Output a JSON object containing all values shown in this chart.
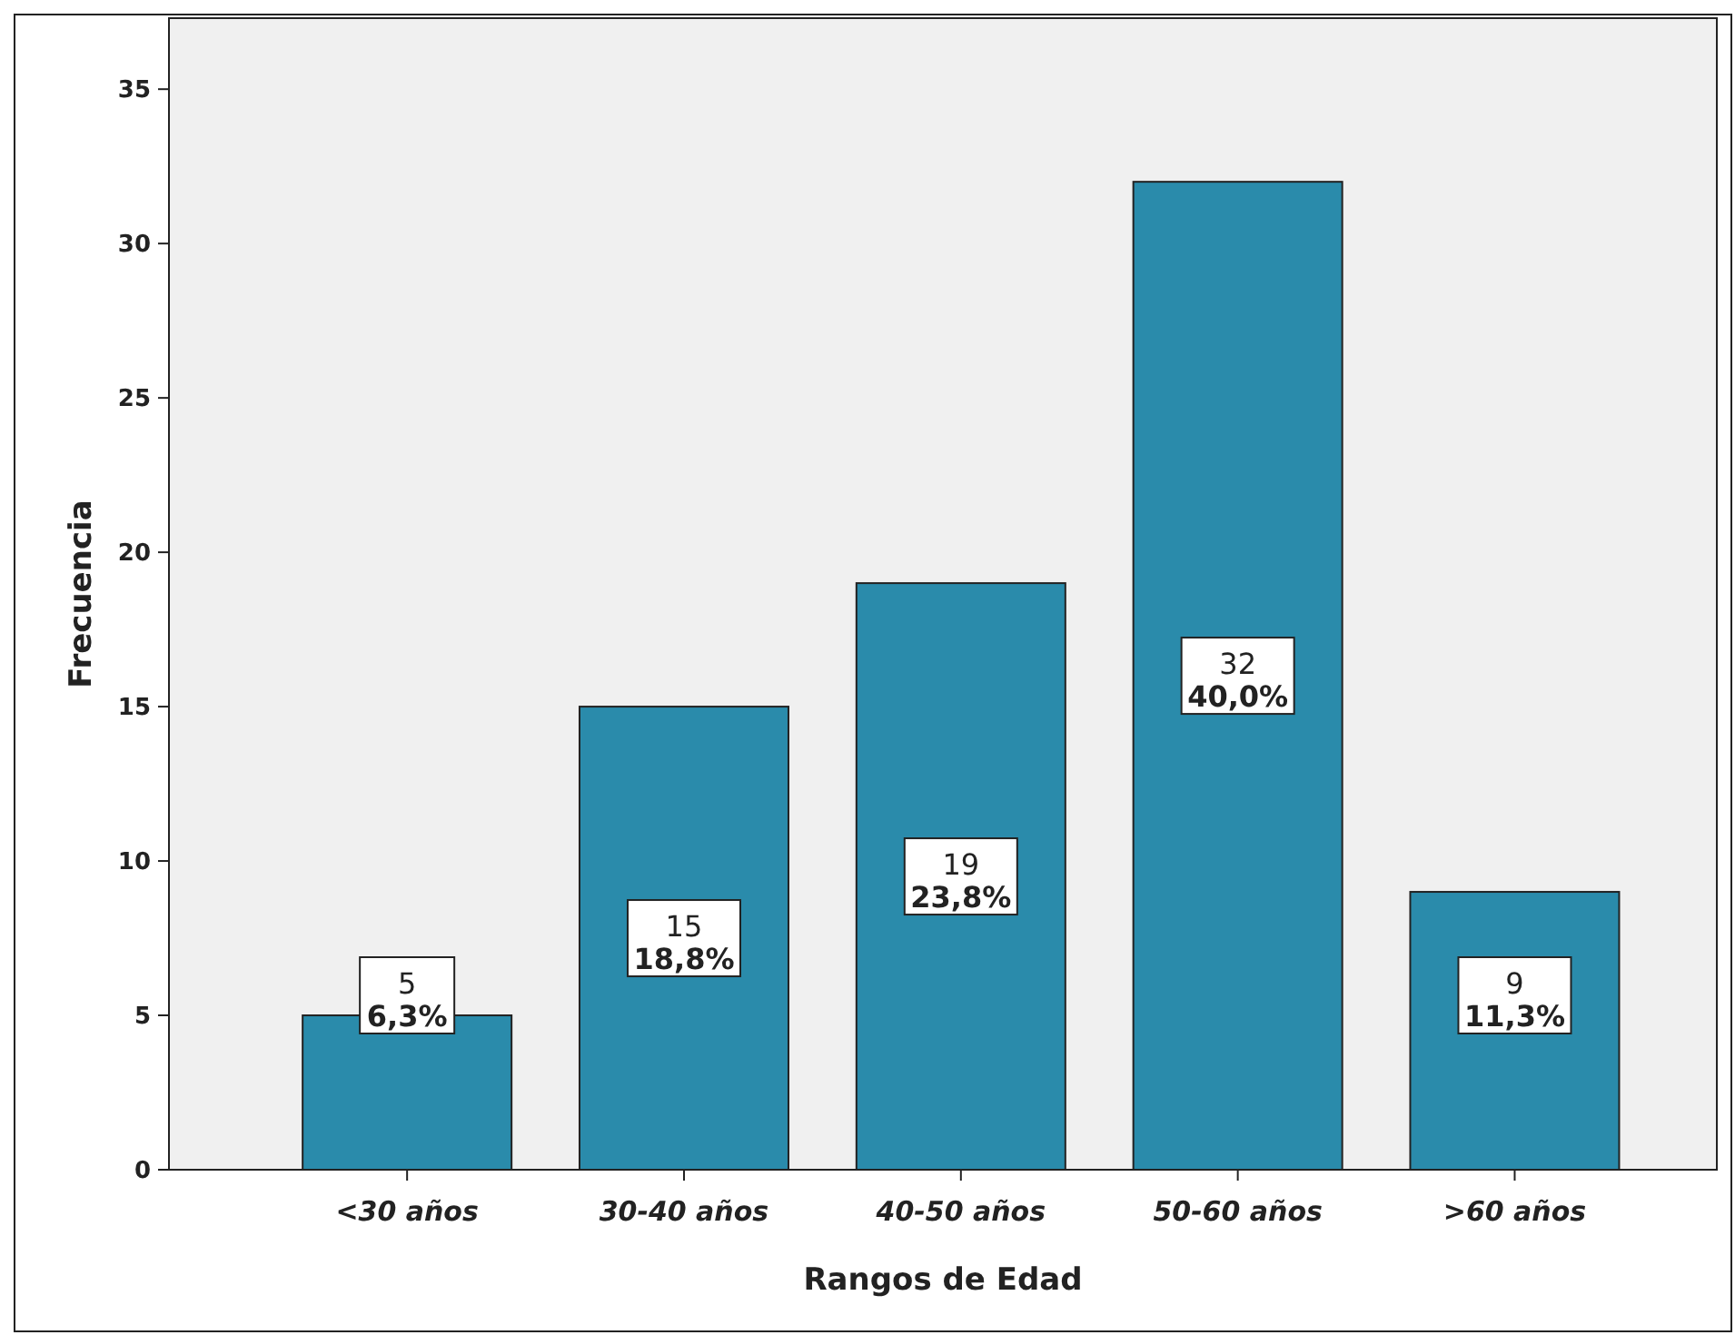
{
  "chart_data": {
    "type": "bar",
    "xlabel": "Rangos de Edad",
    "ylabel": "Frecuencia",
    "categories": [
      "<30 años",
      "30-40 años",
      "40-50 años",
      "50-60 años",
      ">60 años"
    ],
    "values": [
      5,
      15,
      19,
      32,
      9
    ],
    "value_labels": [
      "5\n6,3%",
      "15\n18,8%",
      "19\n23,8%",
      "32\n40,0%",
      "9\n11,3%"
    ],
    "color": "#2a8bab",
    "ylim": [
      0,
      37.3
    ],
    "yticks": [
      0,
      5,
      10,
      15,
      20,
      25,
      30,
      35
    ],
    "grid": false
  }
}
